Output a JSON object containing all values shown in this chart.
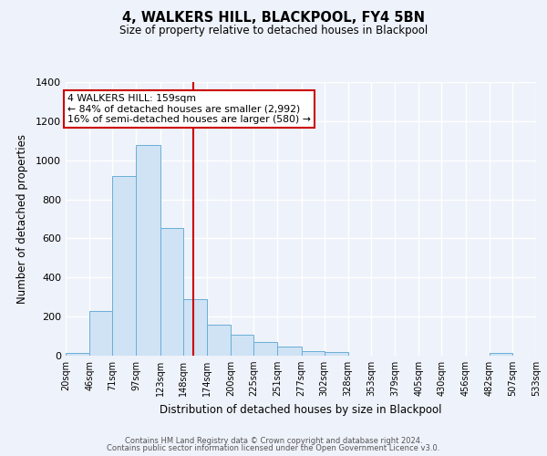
{
  "title": "4, WALKERS HILL, BLACKPOOL, FY4 5BN",
  "subtitle": "Size of property relative to detached houses in Blackpool",
  "xlabel": "Distribution of detached houses by size in Blackpool",
  "ylabel": "Number of detached properties",
  "bar_edges": [
    20,
    46,
    71,
    97,
    123,
    148,
    174,
    200,
    225,
    251,
    277,
    302,
    328,
    353,
    379,
    405,
    430,
    456,
    482,
    507,
    533
  ],
  "bar_heights": [
    15,
    228,
    920,
    1080,
    655,
    290,
    160,
    108,
    70,
    45,
    22,
    18,
    0,
    0,
    0,
    0,
    0,
    0,
    12,
    0,
    0
  ],
  "bar_color": "#cfe3f5",
  "bar_edgecolor": "#6baed6",
  "property_line_x": 159,
  "property_line_color": "#cc0000",
  "annotation_title": "4 WALKERS HILL: 159sqm",
  "annotation_line1": "← 84% of detached houses are smaller (2,992)",
  "annotation_line2": "16% of semi-detached houses are larger (580) →",
  "annotation_box_edgecolor": "#cc0000",
  "annotation_box_facecolor": "#ffffff",
  "ylim": [
    0,
    1400
  ],
  "yticks": [
    0,
    200,
    400,
    600,
    800,
    1000,
    1200,
    1400
  ],
  "tick_labels": [
    "20sqm",
    "46sqm",
    "71sqm",
    "97sqm",
    "123sqm",
    "148sqm",
    "174sqm",
    "200sqm",
    "225sqm",
    "251sqm",
    "277sqm",
    "302sqm",
    "328sqm",
    "353sqm",
    "379sqm",
    "405sqm",
    "430sqm",
    "456sqm",
    "482sqm",
    "507sqm",
    "533sqm"
  ],
  "background_color": "#eef2fa",
  "grid_color": "#ffffff",
  "footer_line1": "Contains HM Land Registry data © Crown copyright and database right 2024.",
  "footer_line2": "Contains public sector information licensed under the Open Government Licence v3.0."
}
